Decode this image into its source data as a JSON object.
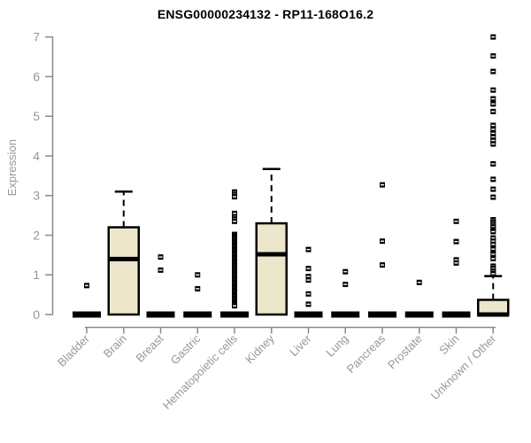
{
  "title": "ENSG00000234132 - RP11-168O16.2",
  "style": {
    "background": "#FFFFFF",
    "box_fill": "#ECE6CB",
    "box_border": "#000000",
    "axis_color": "#8B8B8B",
    "label_color": "#979797",
    "title_color": "#000000"
  },
  "chart_data": {
    "type": "boxplot",
    "title": "ENSG00000234132 - RP11-168O16.2",
    "xlabel": "",
    "ylabel": "Expression",
    "ylim": [
      0,
      7
    ],
    "yticks": [
      0,
      1,
      2,
      3,
      4,
      5,
      6,
      7
    ],
    "grid": false,
    "legend": false,
    "categories": [
      "Bladder",
      "Brain",
      "Breast",
      "Gastric",
      "Hematopoietic cells",
      "Kidney",
      "Liver",
      "Lung",
      "Pancreas",
      "Prostate",
      "Skin",
      "Unknown / Other"
    ],
    "series": [
      {
        "category": "Bladder",
        "q1": 0,
        "median": 0,
        "q3": 0,
        "whisker_low": 0,
        "whisker_high": 0,
        "outliers": [
          0.73
        ]
      },
      {
        "category": "Brain",
        "q1": 0,
        "median": 1.4,
        "q3": 2.2,
        "whisker_low": 0,
        "whisker_high": 3.1,
        "outliers": []
      },
      {
        "category": "Breast",
        "q1": 0,
        "median": 0,
        "q3": 0,
        "whisker_low": 0,
        "whisker_high": 0,
        "outliers": [
          1.45,
          1.12
        ]
      },
      {
        "category": "Gastric",
        "q1": 0,
        "median": 0,
        "q3": 0,
        "whisker_low": 0,
        "whisker_high": 0,
        "outliers": [
          1.0,
          0.65
        ]
      },
      {
        "category": "Hematopoietic cells",
        "q1": 0,
        "median": 0,
        "q3": 0,
        "whisker_low": 0,
        "whisker_high": 0,
        "outliers": [
          3.09,
          3.03,
          2.97,
          2.55,
          2.47,
          2.41,
          2.35,
          2.02,
          1.97,
          1.92,
          1.87,
          1.82,
          1.77,
          1.72,
          1.67,
          1.62,
          1.57,
          1.52,
          1.47,
          1.42,
          1.37,
          1.32,
          1.27,
          1.22,
          1.17,
          1.12,
          1.07,
          1.02,
          0.97,
          0.92,
          0.87,
          0.82,
          0.77,
          0.72,
          0.67,
          0.62,
          0.57,
          0.52,
          0.47,
          0.42,
          0.37,
          0.32,
          0.27,
          0.22
        ]
      },
      {
        "category": "Kidney",
        "q1": 0,
        "median": 1.52,
        "q3": 2.3,
        "whisker_low": 0,
        "whisker_high": 3.67,
        "outliers": []
      },
      {
        "category": "Liver",
        "q1": 0,
        "median": 0,
        "q3": 0,
        "whisker_low": 0,
        "whisker_high": 0,
        "outliers": [
          1.64,
          1.16,
          0.96,
          0.87,
          0.52,
          0.26
        ]
      },
      {
        "category": "Lung",
        "q1": 0,
        "median": 0,
        "q3": 0,
        "whisker_low": 0,
        "whisker_high": 0,
        "outliers": [
          1.08,
          0.76
        ]
      },
      {
        "category": "Pancreas",
        "q1": 0,
        "median": 0,
        "q3": 0,
        "whisker_low": 0,
        "whisker_high": 0,
        "outliers": [
          3.27,
          1.85,
          1.25
        ]
      },
      {
        "category": "Prostate",
        "q1": 0,
        "median": 0,
        "q3": 0,
        "whisker_low": 0,
        "whisker_high": 0,
        "outliers": [
          0.81
        ]
      },
      {
        "category": "Skin",
        "q1": 0,
        "median": 0,
        "q3": 0,
        "whisker_low": 0,
        "whisker_high": 0,
        "outliers": [
          2.35,
          1.84,
          1.38,
          1.3
        ]
      },
      {
        "category": "Unknown / Other",
        "q1": 0,
        "median": 0,
        "q3": 0.37,
        "whisker_low": 0,
        "whisker_high": 0.97,
        "outliers": [
          7.0,
          6.52,
          6.13,
          5.66,
          5.44,
          5.31,
          5.12,
          4.77,
          4.67,
          4.57,
          4.48,
          4.39,
          4.3,
          3.8,
          3.41,
          3.16,
          2.96,
          2.39,
          2.33,
          2.27,
          2.21,
          2.14,
          2.09,
          1.93,
          1.85,
          1.77,
          1.65,
          1.52,
          1.41,
          1.22,
          1.16,
          1.09,
          1.03
        ]
      }
    ]
  }
}
